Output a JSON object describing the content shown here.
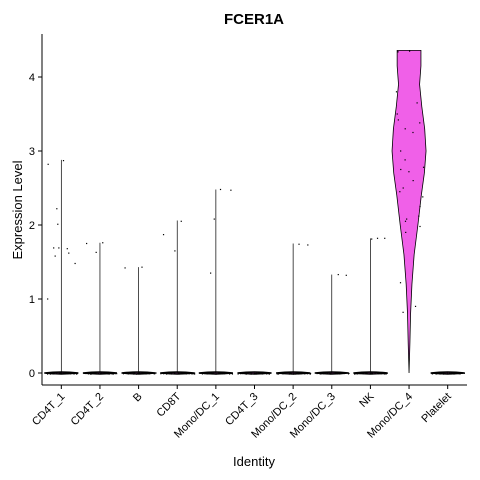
{
  "chart_data": {
    "type": "violin",
    "title": "FCER1A",
    "xlabel": "Identity",
    "ylabel": "Expression Level",
    "ylim": [
      -0.25,
      4.6
    ],
    "yticks": [
      0,
      1,
      2,
      3,
      4
    ],
    "categories": [
      "CD4T_1",
      "CD4T_2",
      "B",
      "CD8T",
      "Mono/DC_1",
      "CD4T_3",
      "Mono/DC_2",
      "Mono/DC_3",
      "NK",
      "Mono/DC_4",
      "Platelet"
    ],
    "fill_color": "#f060e8",
    "groups": [
      {
        "max": 2.88,
        "points": [
          2.87,
          2.82,
          2.22,
          2.01,
          1.69,
          1.69,
          1.68,
          1.62,
          1.58,
          1.48,
          1.0
        ]
      },
      {
        "max": 1.76,
        "points": [
          1.76,
          1.75,
          1.63
        ]
      },
      {
        "max": 1.43,
        "points": [
          1.43,
          1.42
        ]
      },
      {
        "max": 2.06,
        "points": [
          2.05,
          1.87,
          1.65
        ]
      },
      {
        "max": 2.48,
        "points": [
          2.48,
          2.47,
          2.08,
          1.35
        ]
      },
      {
        "max": 0,
        "points": []
      },
      {
        "max": 1.75,
        "points": [
          1.74,
          1.73
        ]
      },
      {
        "max": 1.33,
        "points": [
          1.33,
          1.32
        ]
      },
      {
        "max": 1.82,
        "points": [
          1.82,
          1.82,
          1.81
        ]
      },
      {
        "max": 4.36,
        "min": 0.0,
        "density": [
          [
            0.0,
            0.0
          ],
          [
            0.4,
            0.05
          ],
          [
            0.8,
            0.09
          ],
          [
            1.2,
            0.17
          ],
          [
            1.6,
            0.3
          ],
          [
            2.0,
            0.52
          ],
          [
            2.4,
            0.72
          ],
          [
            2.7,
            0.9
          ],
          [
            3.0,
            1.0
          ],
          [
            3.3,
            0.92
          ],
          [
            3.6,
            0.75
          ],
          [
            3.9,
            0.62
          ],
          [
            4.15,
            0.7
          ],
          [
            4.36,
            0.7
          ]
        ],
        "points": [
          4.35,
          4.34,
          3.8,
          3.65,
          3.5,
          3.42,
          3.38,
          3.3,
          3.25,
          3.0,
          2.88,
          2.78,
          2.75,
          2.72,
          2.6,
          2.5,
          2.45,
          2.38,
          2.25,
          2.12,
          2.08,
          2.05,
          1.98,
          1.9,
          1.22,
          0.9,
          0.82
        ]
      },
      {
        "max": 0,
        "points": []
      }
    ]
  }
}
